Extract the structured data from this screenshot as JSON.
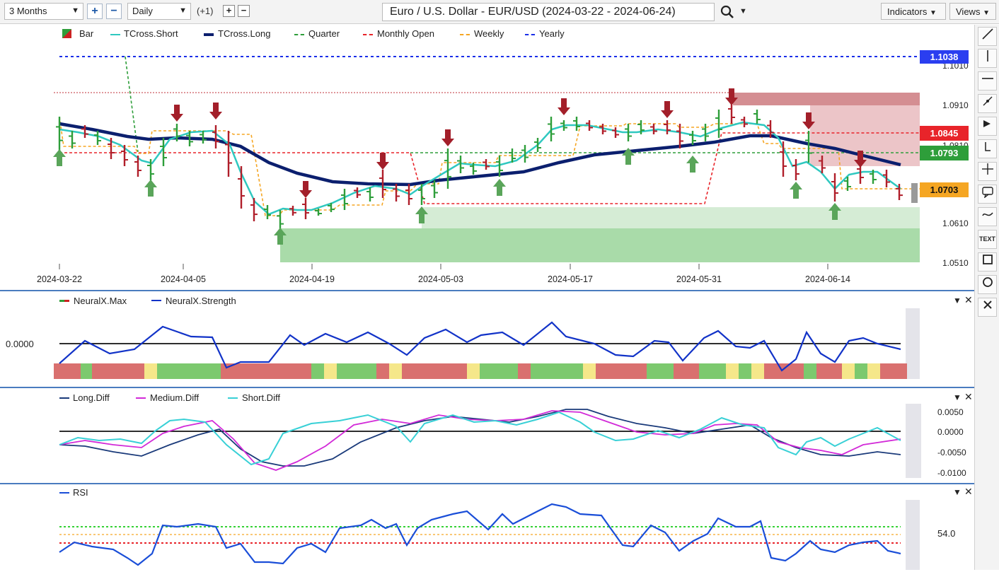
{
  "toolbar": {
    "timeframe": "3 Months",
    "period": "Daily",
    "offset": "(+1)",
    "title": "Euro / U.S. Dollar - EUR/USD (2024-03-22 - 2024-06-24)",
    "indicators_label": "Indicators",
    "views_label": "Views"
  },
  "main_legend": [
    "Bar",
    "TCross.Short",
    "TCross.Long",
    "Quarter",
    "Monthly Open",
    "Weekly",
    "Yearly"
  ],
  "price_labels": {
    "yearly": "1.1038",
    "monthly": "1.0845",
    "quarter": "1.0793",
    "last": "1.0703"
  },
  "price_ticks": [
    "1.1010",
    "1.0910",
    "1.0810",
    "1.0610",
    "1.0510"
  ],
  "date_ticks": [
    "2024-03-22",
    "2024-04-05",
    "2024-04-19",
    "2024-05-03",
    "2024-05-17",
    "2024-05-31",
    "2024-06-14"
  ],
  "neural_legend": [
    "NeuralX.Max",
    "NeuralX.Strength"
  ],
  "neural_tick": "0.0000",
  "diff_legend": [
    "Long.Diff",
    "Medium.Diff",
    "Short.Diff"
  ],
  "diff_ticks": [
    "0.0050",
    "0.0000",
    "-0.0050",
    "-0.0100"
  ],
  "rsi_legend": [
    "RSI"
  ],
  "rsi_tick": "54.0",
  "colors": {
    "green_arrow": "#5aa55a",
    "red_arrow": "#a31f2a",
    "tcross_short": "#2fc8c0",
    "tcross_long": "#0b1f6e",
    "yearly": "#1a2ee8",
    "monthly": "#e8242a",
    "quarter": "#2e9e3a",
    "weekly": "#f5a623",
    "long_diff": "#1a3a7a",
    "medium_diff": "#d22ad8",
    "short_diff": "#38d0d6",
    "rsi": "#1a4ed8"
  },
  "icons": {
    "search": "search-icon",
    "draw_line": "trend-line-icon",
    "vertical_line": "vertical-line-icon",
    "horizontal_line": "horizontal-line-icon",
    "text": "text-tool-icon",
    "close": "close-icon"
  }
}
